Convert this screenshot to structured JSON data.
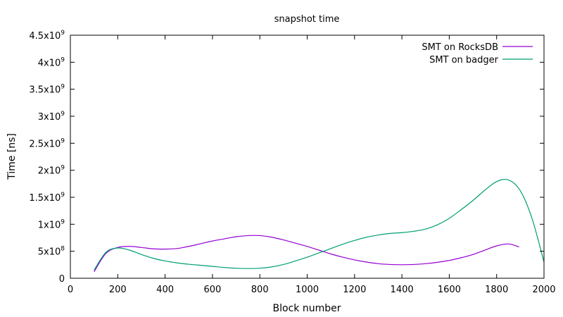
{
  "chart_data": {
    "type": "line",
    "title": "snapshot time",
    "xlabel": "Block number",
    "ylabel": "Time [ns]",
    "xlim": [
      0,
      2000
    ],
    "ylim": [
      0,
      4500000000
    ],
    "x_ticks": [
      0,
      200,
      400,
      600,
      800,
      1000,
      1200,
      1400,
      1600,
      1800,
      2000
    ],
    "y_ticks": [
      {
        "value": 0,
        "mantissa": "0",
        "exp": ""
      },
      {
        "value": 500000000,
        "mantissa": "5x10",
        "exp": "8"
      },
      {
        "value": 1000000000,
        "mantissa": "1x10",
        "exp": "9"
      },
      {
        "value": 1500000000,
        "mantissa": "1.5x10",
        "exp": "9"
      },
      {
        "value": 2000000000,
        "mantissa": "2x10",
        "exp": "9"
      },
      {
        "value": 2500000000,
        "mantissa": "2.5x10",
        "exp": "9"
      },
      {
        "value": 3000000000,
        "mantissa": "3x10",
        "exp": "9"
      },
      {
        "value": 3500000000,
        "mantissa": "3.5x10",
        "exp": "9"
      },
      {
        "value": 4000000000,
        "mantissa": "4x10",
        "exp": "9"
      },
      {
        "value": 4500000000,
        "mantissa": "4.5x10",
        "exp": "9"
      }
    ],
    "grid": false,
    "legend_position": "top-right",
    "series": [
      {
        "name": "SMT on RocksDB",
        "color": "#9400d3",
        "x": [
          100,
          150,
          200,
          250,
          300,
          350,
          400,
          450,
          500,
          550,
          600,
          650,
          700,
          750,
          800,
          850,
          900,
          950,
          1000,
          1050,
          1100,
          1150,
          1200,
          1250,
          1300,
          1350,
          1400,
          1450,
          1500,
          1550,
          1600,
          1650,
          1700,
          1750,
          1800,
          1850,
          1895
        ],
        "y": [
          120000000,
          460000000,
          570000000,
          590000000,
          570000000,
          545000000,
          540000000,
          550000000,
          590000000,
          640000000,
          690000000,
          730000000,
          770000000,
          790000000,
          790000000,
          760000000,
          710000000,
          650000000,
          590000000,
          520000000,
          450000000,
          390000000,
          340000000,
          300000000,
          270000000,
          255000000,
          250000000,
          255000000,
          270000000,
          295000000,
          330000000,
          380000000,
          440000000,
          520000000,
          600000000,
          635000000,
          580000000
        ]
      },
      {
        "name": "SMT on badger",
        "color": "#009e73",
        "x": [
          100,
          150,
          200,
          250,
          300,
          350,
          400,
          450,
          500,
          550,
          600,
          650,
          700,
          750,
          800,
          850,
          900,
          950,
          1000,
          1050,
          1100,
          1150,
          1200,
          1250,
          1300,
          1350,
          1400,
          1450,
          1500,
          1550,
          1600,
          1650,
          1700,
          1750,
          1800,
          1850,
          1900,
          1950,
          2000
        ],
        "y": [
          150000000,
          480000000,
          560000000,
          520000000,
          440000000,
          370000000,
          320000000,
          285000000,
          260000000,
          240000000,
          220000000,
          200000000,
          185000000,
          180000000,
          185000000,
          210000000,
          255000000,
          320000000,
          390000000,
          470000000,
          550000000,
          630000000,
          700000000,
          760000000,
          800000000,
          830000000,
          845000000,
          870000000,
          910000000,
          990000000,
          1110000000,
          1270000000,
          1440000000,
          1630000000,
          1790000000,
          1820000000,
          1620000000,
          1100000000,
          300000000
        ]
      }
    ]
  }
}
